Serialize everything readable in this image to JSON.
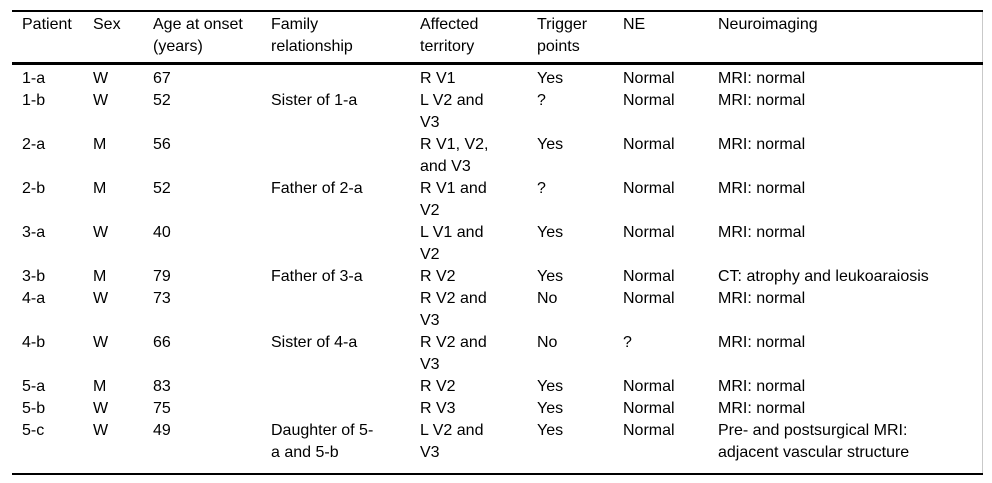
{
  "table": {
    "columns": [
      "Patient",
      "Sex",
      "Age at onset (years)",
      "Family relationship",
      "Affected territory",
      "Trigger points",
      "NE",
      "Neuroimaging"
    ],
    "rows": [
      [
        "1-a",
        "W",
        "67",
        "",
        "R V1",
        "Yes",
        "Normal",
        "MRI: normal"
      ],
      [
        "1-b",
        "W",
        "52",
        "Sister of 1-a",
        "L V2 and V3",
        "?",
        "Normal",
        "MRI: normal"
      ],
      [
        "2-a",
        "M",
        "56",
        "",
        "R V1, V2, and V3",
        "Yes",
        "Normal",
        "MRI: normal"
      ],
      [
        "2-b",
        "M",
        "52",
        "Father of 2-a",
        "R V1 and V2",
        "?",
        "Normal",
        "MRI: normal"
      ],
      [
        "3-a",
        "W",
        "40",
        "",
        "L V1 and V2",
        "Yes",
        "Normal",
        "MRI: normal"
      ],
      [
        "3-b",
        "M",
        "79",
        "Father of 3-a",
        "R V2",
        "Yes",
        "Normal",
        "CT: atrophy and leukoaraiosis"
      ],
      [
        "4-a",
        "W",
        "73",
        "",
        "R V2 and V3",
        "No",
        "Normal",
        "MRI: normal"
      ],
      [
        "4-b",
        "W",
        "66",
        "Sister of 4-a",
        "R V2 and V3",
        "No",
        "?",
        "MRI: normal"
      ],
      [
        "5-a",
        "M",
        "83",
        "",
        "R V2",
        "Yes",
        "Normal",
        "MRI: normal"
      ],
      [
        "5-b",
        "W",
        "75",
        "",
        "R V3",
        "Yes",
        "Normal",
        "MRI: normal"
      ],
      [
        "5-c",
        "W",
        "49",
        "Daughter of 5-a and 5-b",
        "L V2 and V3",
        "Yes",
        "Normal",
        "Pre- and postsurgical MRI: adjacent vascular structure"
      ]
    ]
  },
  "colors": {
    "text": "#000000",
    "rule": "#000000",
    "page_edge": "#c9c9c9",
    "background": "#ffffff"
  }
}
